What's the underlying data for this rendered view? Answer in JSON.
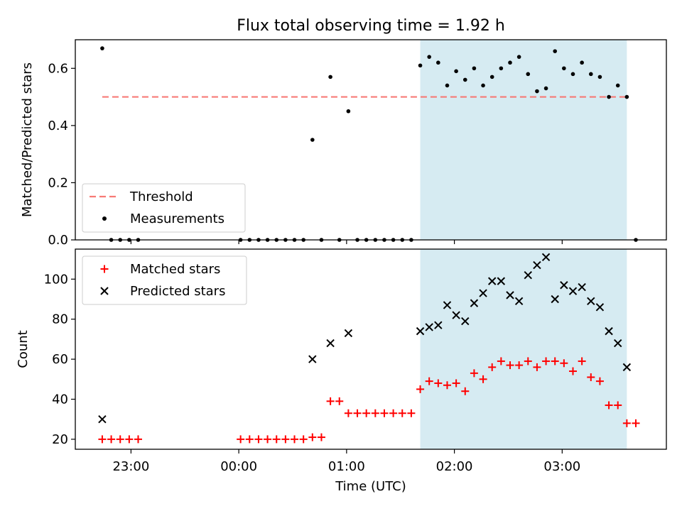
{
  "chart_data": [
    {
      "type": "scatter",
      "title": "Flux total observing time = 1.92 h",
      "ylabel": "Matched/Predicted stars",
      "xlim": [
        "22:29",
        "03:58"
      ],
      "ylim": [
        0,
        0.7
      ],
      "yticks": [
        0.0,
        0.2,
        0.4,
        0.6
      ],
      "ytick_labels": [
        "0.0",
        "0.2",
        "0.4",
        "0.6"
      ],
      "shaded_region": {
        "x": [
          "01:41",
          "03:36"
        ],
        "color": "#add8e6"
      },
      "legend": {
        "placement": "lower-left",
        "entries": [
          "Threshold",
          "Measurements"
        ]
      },
      "threshold": {
        "name": "Threshold",
        "y": 0.5,
        "x": [
          "22:44",
          "03:36"
        ],
        "color": "#f77a76",
        "style": "dashed"
      },
      "series": [
        {
          "name": "Measurements",
          "color": "#000000",
          "marker": "dot",
          "points": [
            [
              "22:44",
              0.67
            ],
            [
              "22:49",
              0.0
            ],
            [
              "22:54",
              0.0
            ],
            [
              "22:59",
              0.0
            ],
            [
              "23:04",
              0.0
            ],
            [
              "00:01",
              0.0
            ],
            [
              "00:06",
              0.0
            ],
            [
              "00:11",
              0.0
            ],
            [
              "00:16",
              0.0
            ],
            [
              "00:21",
              0.0
            ],
            [
              "00:26",
              0.0
            ],
            [
              "00:31",
              0.0
            ],
            [
              "00:36",
              0.0
            ],
            [
              "00:41",
              0.35
            ],
            [
              "00:46",
              0.0
            ],
            [
              "00:51",
              0.57
            ],
            [
              "00:56",
              0.0
            ],
            [
              "01:01",
              0.45
            ],
            [
              "01:06",
              0.0
            ],
            [
              "01:11",
              0.0
            ],
            [
              "01:16",
              0.0
            ],
            [
              "01:21",
              0.0
            ],
            [
              "01:26",
              0.0
            ],
            [
              "01:31",
              0.0
            ],
            [
              "01:36",
              0.0
            ],
            [
              "01:41",
              0.61
            ],
            [
              "01:46",
              0.64
            ],
            [
              "01:51",
              0.62
            ],
            [
              "01:56",
              0.54
            ],
            [
              "02:01",
              0.59
            ],
            [
              "02:06",
              0.56
            ],
            [
              "02:11",
              0.6
            ],
            [
              "02:16",
              0.54
            ],
            [
              "02:21",
              0.57
            ],
            [
              "02:26",
              0.6
            ],
            [
              "02:31",
              0.62
            ],
            [
              "02:36",
              0.64
            ],
            [
              "02:41",
              0.58
            ],
            [
              "02:46",
              0.52
            ],
            [
              "02:51",
              0.53
            ],
            [
              "02:56",
              0.66
            ],
            [
              "03:01",
              0.6
            ],
            [
              "03:06",
              0.58
            ],
            [
              "03:11",
              0.62
            ],
            [
              "03:16",
              0.58
            ],
            [
              "03:21",
              0.57
            ],
            [
              "03:26",
              0.5
            ],
            [
              "03:31",
              0.54
            ],
            [
              "03:36",
              0.5
            ],
            [
              "03:41",
              0.0
            ]
          ]
        }
      ]
    },
    {
      "type": "scatter",
      "xlabel": "Time (UTC)",
      "ylabel": "Count",
      "xlim": [
        "22:29",
        "03:58"
      ],
      "ylim": [
        15,
        115
      ],
      "xticks": [
        "23:00",
        "00:00",
        "01:00",
        "02:00",
        "03:00"
      ],
      "xtick_labels": [
        "23:00",
        "00:00",
        "01:00",
        "02:00",
        "03:00"
      ],
      "yticks": [
        20,
        40,
        60,
        80,
        100
      ],
      "ytick_labels": [
        "20",
        "40",
        "60",
        "80",
        "100"
      ],
      "shaded_region": {
        "x": [
          "01:41",
          "03:36"
        ],
        "color": "#add8e6"
      },
      "legend": {
        "placement": "upper-left",
        "entries": [
          "Matched stars",
          "Predicted stars"
        ]
      },
      "series": [
        {
          "name": "Matched stars",
          "color": "#ff0000",
          "marker": "plus",
          "points": [
            [
              "22:44",
              20
            ],
            [
              "22:49",
              20
            ],
            [
              "22:54",
              20
            ],
            [
              "22:59",
              20
            ],
            [
              "23:04",
              20
            ],
            [
              "00:01",
              20
            ],
            [
              "00:06",
              20
            ],
            [
              "00:11",
              20
            ],
            [
              "00:16",
              20
            ],
            [
              "00:21",
              20
            ],
            [
              "00:26",
              20
            ],
            [
              "00:31",
              20
            ],
            [
              "00:36",
              20
            ],
            [
              "00:41",
              21
            ],
            [
              "00:46",
              21
            ],
            [
              "00:51",
              39
            ],
            [
              "00:56",
              39
            ],
            [
              "01:01",
              33
            ],
            [
              "01:06",
              33
            ],
            [
              "01:11",
              33
            ],
            [
              "01:16",
              33
            ],
            [
              "01:21",
              33
            ],
            [
              "01:26",
              33
            ],
            [
              "01:31",
              33
            ],
            [
              "01:36",
              33
            ],
            [
              "01:41",
              45
            ],
            [
              "01:46",
              49
            ],
            [
              "01:51",
              48
            ],
            [
              "01:56",
              47
            ],
            [
              "02:01",
              48
            ],
            [
              "02:06",
              44
            ],
            [
              "02:11",
              53
            ],
            [
              "02:16",
              50
            ],
            [
              "02:21",
              56
            ],
            [
              "02:26",
              59
            ],
            [
              "02:31",
              57
            ],
            [
              "02:36",
              57
            ],
            [
              "02:41",
              59
            ],
            [
              "02:46",
              56
            ],
            [
              "02:51",
              59
            ],
            [
              "02:56",
              59
            ],
            [
              "03:01",
              58
            ],
            [
              "03:06",
              54
            ],
            [
              "03:11",
              59
            ],
            [
              "03:16",
              51
            ],
            [
              "03:21",
              49
            ],
            [
              "03:26",
              37
            ],
            [
              "03:31",
              37
            ],
            [
              "03:36",
              28
            ],
            [
              "03:41",
              28
            ]
          ]
        },
        {
          "name": "Predicted stars",
          "color": "#000000",
          "marker": "x",
          "points": [
            [
              "22:44",
              30
            ],
            [
              "00:41",
              60
            ],
            [
              "00:51",
              68
            ],
            [
              "01:01",
              73
            ],
            [
              "01:41",
              74
            ],
            [
              "01:46",
              76
            ],
            [
              "01:51",
              77
            ],
            [
              "01:56",
              87
            ],
            [
              "02:01",
              82
            ],
            [
              "02:06",
              79
            ],
            [
              "02:11",
              88
            ],
            [
              "02:16",
              93
            ],
            [
              "02:21",
              99
            ],
            [
              "02:26",
              99
            ],
            [
              "02:31",
              92
            ],
            [
              "02:36",
              89
            ],
            [
              "02:41",
              102
            ],
            [
              "02:46",
              107
            ],
            [
              "02:51",
              111
            ],
            [
              "02:56",
              90
            ],
            [
              "03:01",
              97
            ],
            [
              "03:06",
              94
            ],
            [
              "03:11",
              96
            ],
            [
              "03:16",
              89
            ],
            [
              "03:21",
              86
            ],
            [
              "03:26",
              74
            ],
            [
              "03:31",
              68
            ],
            [
              "03:36",
              56
            ]
          ]
        }
      ]
    }
  ]
}
